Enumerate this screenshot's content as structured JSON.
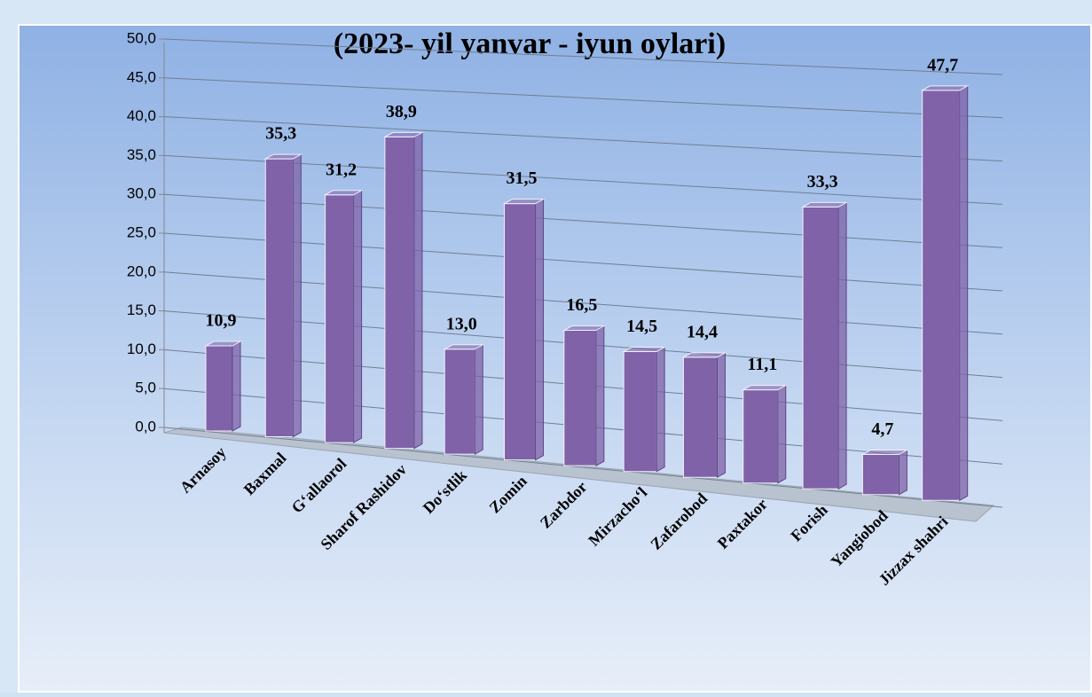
{
  "chart_data": {
    "type": "bar3d",
    "title": "(2023- yil yanvar - iyun oylari)",
    "categories": [
      "Arnasoy",
      "Baxmal",
      "G‘allaorol",
      "Sharof Rashidov",
      "Do‘stlik",
      "Zomin",
      "Zarbdor",
      "Mirzacho‘l",
      "Zafarobod",
      "Paxtakor",
      "Forish",
      "Yangiobod",
      "Jizzax shahri"
    ],
    "values": [
      10.9,
      35.3,
      31.2,
      38.9,
      13.0,
      31.5,
      16.5,
      14.5,
      14.4,
      11.1,
      33.3,
      4.7,
      47.7
    ],
    "value_labels": [
      "10,9",
      "35,3",
      "31,2",
      "38,9",
      "13,0",
      "31,5",
      "16,5",
      "14,5",
      "14,4",
      "11,1",
      "33,3",
      "4,7",
      "47,7"
    ],
    "color": "#7f62a8",
    "ylim": [
      0,
      50
    ],
    "yticks": [
      {
        "value": 0,
        "label": "0,0"
      },
      {
        "value": 5,
        "label": "5,0"
      },
      {
        "value": 10,
        "label": "10,0"
      },
      {
        "value": 15,
        "label": "15,0"
      },
      {
        "value": 20,
        "label": "20,0"
      },
      {
        "value": 25,
        "label": "25,0"
      },
      {
        "value": 30,
        "label": "30,0"
      },
      {
        "value": 35,
        "label": "35,0"
      },
      {
        "value": 40,
        "label": "40,0"
      },
      {
        "value": 45,
        "label": "45,0"
      },
      {
        "value": 50,
        "label": "50,0"
      }
    ],
    "grid": true
  }
}
